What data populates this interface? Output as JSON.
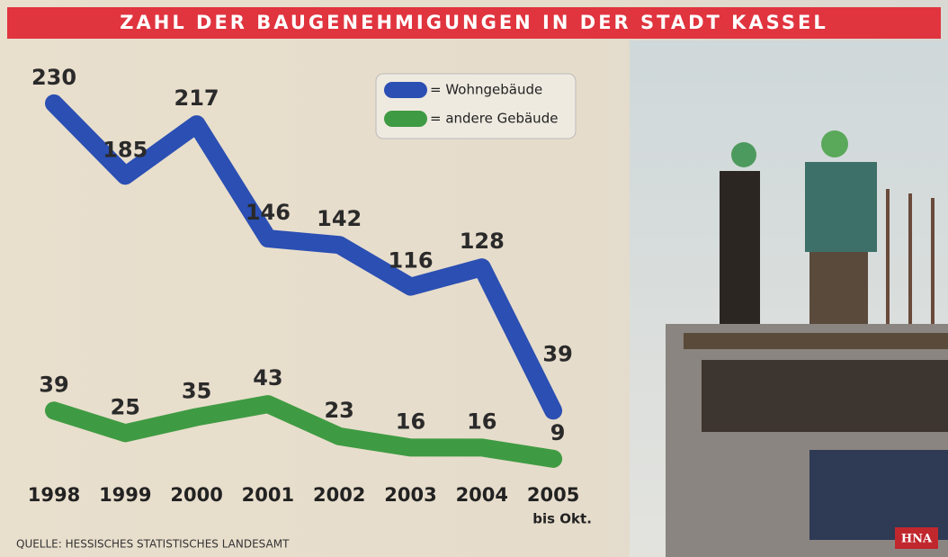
{
  "chart_data": {
    "type": "line",
    "title": "ZAHL DER BAUGENEHMIGUNGEN IN DER STADT KASSEL",
    "categories": [
      "1998",
      "1999",
      "2000",
      "2001",
      "2002",
      "2003",
      "2004",
      "2005"
    ],
    "annotations": [
      "bis Okt."
    ],
    "series": [
      {
        "name": "= Wohngebäude",
        "color": "#2b4fb3",
        "values": [
          230,
          185,
          217,
          146,
          142,
          116,
          128,
          39
        ]
      },
      {
        "name": "= andere Gebäude",
        "color": "#3f9b43",
        "values": [
          39,
          25,
          35,
          43,
          23,
          16,
          16,
          9
        ]
      }
    ],
    "ylim": [
      0,
      240
    ],
    "source": "QUELLE: HESSISCHES STATISTISCHES LANDESAMT",
    "logo": "HNA"
  }
}
